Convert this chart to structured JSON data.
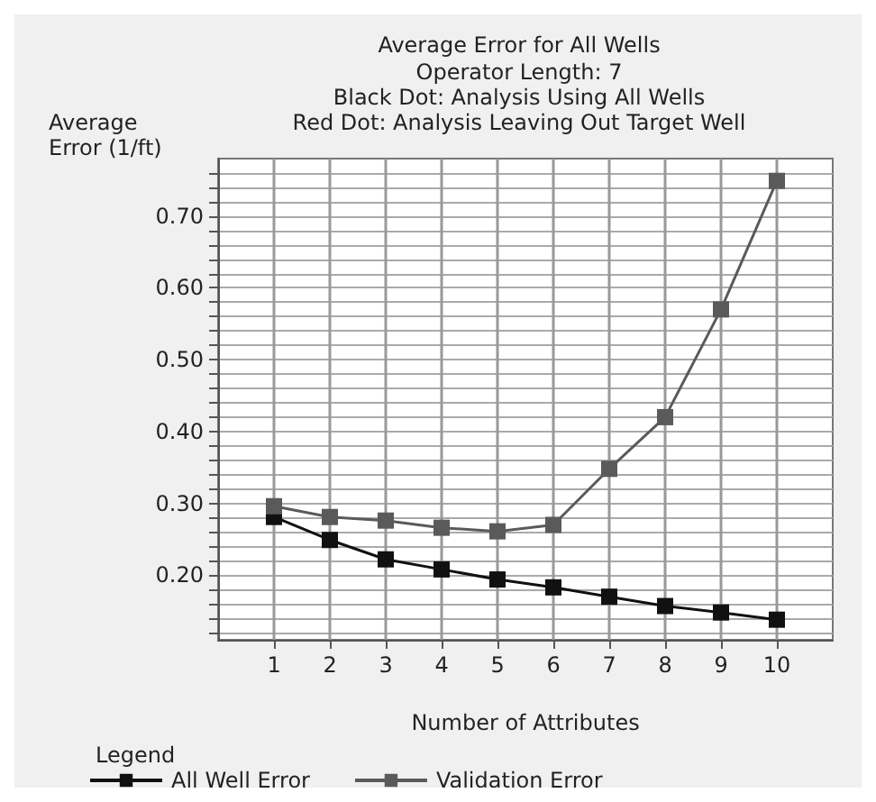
{
  "chart_data": {
    "type": "line",
    "title": "Average Error for All Wells",
    "subtitle": "Operator Length: 7\nBlack Dot: Analysis Using All Wells\nRed Dot: Analysis Leaving Out Target Well",
    "xlabel": "Number of Attributes",
    "ylabel": "Average\nError (1/ft)",
    "legend_title": "Legend",
    "x": [
      1,
      2,
      3,
      4,
      5,
      6,
      7,
      8,
      9,
      10
    ],
    "series": [
      {
        "name": "All Well Error",
        "color": "#111111",
        "values": [
          0.281,
          0.249,
          0.222,
          0.208,
          0.194,
          0.183,
          0.17,
          0.157,
          0.148,
          0.138
        ]
      },
      {
        "name": "Validation Error",
        "color": "#5a5a5a",
        "values": [
          0.296,
          0.281,
          0.276,
          0.266,
          0.261,
          0.27,
          0.348,
          0.42,
          0.57,
          0.749
        ]
      }
    ],
    "xlim": [
      0,
      11
    ],
    "xticks": [
      1,
      2,
      3,
      4,
      5,
      6,
      7,
      8,
      9,
      10
    ],
    "ylim": [
      0.11,
      0.78
    ],
    "yticks": [
      {
        "value": 0.12,
        "label": null
      },
      {
        "value": 0.14,
        "label": null
      },
      {
        "value": 0.16,
        "label": null
      },
      {
        "value": 0.18,
        "label": null
      },
      {
        "value": 0.2,
        "label": "0.20"
      },
      {
        "value": 0.22,
        "label": null
      },
      {
        "value": 0.24,
        "label": null
      },
      {
        "value": 0.26,
        "label": null
      },
      {
        "value": 0.28,
        "label": null
      },
      {
        "value": 0.3,
        "label": "0.30"
      },
      {
        "value": 0.32,
        "label": null
      },
      {
        "value": 0.34,
        "label": null
      },
      {
        "value": 0.36,
        "label": null
      },
      {
        "value": 0.38,
        "label": null
      },
      {
        "value": 0.4,
        "label": "0.40"
      },
      {
        "value": 0.42,
        "label": null
      },
      {
        "value": 0.44,
        "label": null
      },
      {
        "value": 0.46,
        "label": null
      },
      {
        "value": 0.48,
        "label": null
      },
      {
        "value": 0.5,
        "label": "0.50"
      },
      {
        "value": 0.52,
        "label": null
      },
      {
        "value": 0.54,
        "label": null
      },
      {
        "value": 0.56,
        "label": null
      },
      {
        "value": 0.58,
        "label": null
      },
      {
        "value": 0.6,
        "label": "0.60"
      },
      {
        "value": 0.62,
        "label": null
      },
      {
        "value": 0.64,
        "label": null
      },
      {
        "value": 0.66,
        "label": null
      },
      {
        "value": 0.68,
        "label": null
      },
      {
        "value": 0.7,
        "label": "0.70"
      },
      {
        "value": 0.72,
        "label": null
      },
      {
        "value": 0.74,
        "label": null
      },
      {
        "value": 0.76,
        "label": null
      }
    ],
    "grid": true,
    "legend": "bottom",
    "marker": "square",
    "line_style": "solid"
  }
}
